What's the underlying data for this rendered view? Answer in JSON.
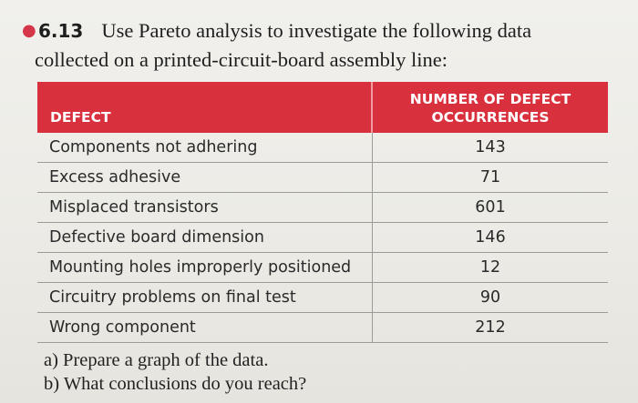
{
  "problem": {
    "number": "6.13",
    "line1": "Use Pareto analysis to investigate the following data",
    "line2": "collected on a printed-circuit-board assembly line:"
  },
  "table": {
    "headers": {
      "defect": "DEFECT",
      "count_line1": "NUMBER OF DEFECT",
      "count_line2": "OCCURRENCES"
    },
    "rows": [
      {
        "defect": "Components not adhering",
        "count": "143"
      },
      {
        "defect": "Excess adhesive",
        "count": "71"
      },
      {
        "defect": "Misplaced transistors",
        "count": "601"
      },
      {
        "defect": "Defective board dimension",
        "count": "146"
      },
      {
        "defect": "Mounting holes improperly positioned",
        "count": "12"
      },
      {
        "defect": "Circuitry problems on final test",
        "count": "90"
      },
      {
        "defect": "Wrong component",
        "count": "212"
      }
    ]
  },
  "questions": {
    "a": "a) Prepare a graph of the data.",
    "b": "b) What conclusions do you reach?"
  },
  "colors": {
    "header_red": "#d8303d",
    "bullet_pink": "#d6364a"
  }
}
